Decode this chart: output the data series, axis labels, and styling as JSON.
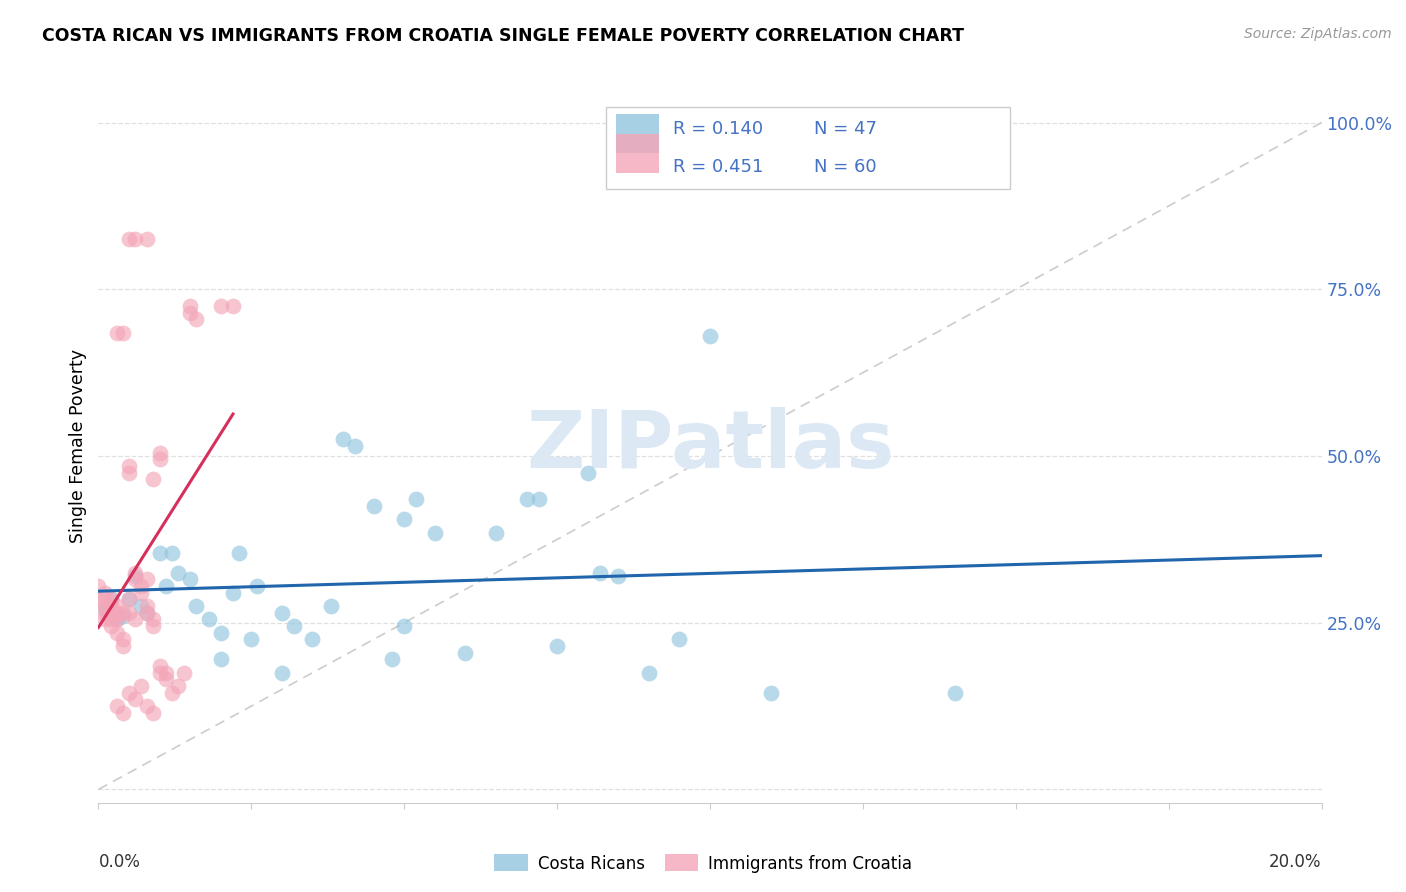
{
  "title": "COSTA RICAN VS IMMIGRANTS FROM CROATIA SINGLE FEMALE POVERTY CORRELATION CHART",
  "source": "Source: ZipAtlas.com",
  "ylabel": "Single Female Poverty",
  "yticks": [
    0.0,
    0.25,
    0.5,
    0.75,
    1.0
  ],
  "ytick_labels": [
    "",
    "25.0%",
    "50.0%",
    "75.0%",
    "100.0%"
  ],
  "xlim": [
    0.0,
    0.2
  ],
  "ylim": [
    -0.02,
    1.05
  ],
  "color_blue": "#92c5de",
  "color_pink": "#f4a6b8",
  "color_blue_line": "#2166ac",
  "color_pink_line": "#d6305a",
  "color_diag": "#cccccc",
  "color_blue_text": "#4472c4",
  "scatter_blue": [
    [
      0.001,
      0.27
    ],
    [
      0.002,
      0.285
    ],
    [
      0.003,
      0.255
    ],
    [
      0.004,
      0.26
    ],
    [
      0.005,
      0.285
    ],
    [
      0.006,
      0.32
    ],
    [
      0.007,
      0.275
    ],
    [
      0.008,
      0.265
    ],
    [
      0.01,
      0.355
    ],
    [
      0.011,
      0.305
    ],
    [
      0.012,
      0.355
    ],
    [
      0.013,
      0.325
    ],
    [
      0.015,
      0.315
    ],
    [
      0.016,
      0.275
    ],
    [
      0.018,
      0.255
    ],
    [
      0.02,
      0.235
    ],
    [
      0.022,
      0.295
    ],
    [
      0.023,
      0.355
    ],
    [
      0.025,
      0.225
    ],
    [
      0.026,
      0.305
    ],
    [
      0.03,
      0.265
    ],
    [
      0.032,
      0.245
    ],
    [
      0.035,
      0.225
    ],
    [
      0.038,
      0.275
    ],
    [
      0.04,
      0.525
    ],
    [
      0.042,
      0.515
    ],
    [
      0.045,
      0.425
    ],
    [
      0.048,
      0.195
    ],
    [
      0.05,
      0.405
    ],
    [
      0.052,
      0.435
    ],
    [
      0.055,
      0.385
    ],
    [
      0.06,
      0.205
    ],
    [
      0.065,
      0.385
    ],
    [
      0.07,
      0.435
    ],
    [
      0.072,
      0.435
    ],
    [
      0.075,
      0.215
    ],
    [
      0.08,
      0.475
    ],
    [
      0.082,
      0.325
    ],
    [
      0.09,
      0.175
    ],
    [
      0.095,
      0.225
    ],
    [
      0.1,
      0.68
    ],
    [
      0.11,
      0.145
    ],
    [
      0.14,
      0.145
    ],
    [
      0.02,
      0.195
    ],
    [
      0.03,
      0.175
    ],
    [
      0.05,
      0.245
    ],
    [
      0.085,
      0.32
    ]
  ],
  "scatter_pink": [
    [
      0.0,
      0.285
    ],
    [
      0.0,
      0.305
    ],
    [
      0.001,
      0.275
    ],
    [
      0.001,
      0.265
    ],
    [
      0.001,
      0.285
    ],
    [
      0.001,
      0.255
    ],
    [
      0.001,
      0.295
    ],
    [
      0.002,
      0.275
    ],
    [
      0.002,
      0.265
    ],
    [
      0.002,
      0.285
    ],
    [
      0.002,
      0.255
    ],
    [
      0.002,
      0.245
    ],
    [
      0.003,
      0.255
    ],
    [
      0.003,
      0.275
    ],
    [
      0.003,
      0.265
    ],
    [
      0.003,
      0.235
    ],
    [
      0.004,
      0.265
    ],
    [
      0.004,
      0.225
    ],
    [
      0.004,
      0.215
    ],
    [
      0.005,
      0.285
    ],
    [
      0.005,
      0.265
    ],
    [
      0.005,
      0.475
    ],
    [
      0.005,
      0.485
    ],
    [
      0.006,
      0.315
    ],
    [
      0.006,
      0.325
    ],
    [
      0.006,
      0.255
    ],
    [
      0.007,
      0.305
    ],
    [
      0.007,
      0.295
    ],
    [
      0.008,
      0.315
    ],
    [
      0.008,
      0.275
    ],
    [
      0.008,
      0.265
    ],
    [
      0.009,
      0.255
    ],
    [
      0.009,
      0.245
    ],
    [
      0.01,
      0.175
    ],
    [
      0.01,
      0.185
    ],
    [
      0.011,
      0.175
    ],
    [
      0.011,
      0.165
    ],
    [
      0.012,
      0.145
    ],
    [
      0.013,
      0.155
    ],
    [
      0.014,
      0.175
    ],
    [
      0.015,
      0.725
    ],
    [
      0.015,
      0.715
    ],
    [
      0.016,
      0.705
    ],
    [
      0.02,
      0.725
    ],
    [
      0.022,
      0.725
    ],
    [
      0.005,
      0.825
    ],
    [
      0.006,
      0.825
    ],
    [
      0.008,
      0.825
    ],
    [
      0.003,
      0.685
    ],
    [
      0.004,
      0.685
    ],
    [
      0.009,
      0.465
    ],
    [
      0.01,
      0.505
    ],
    [
      0.01,
      0.495
    ],
    [
      0.005,
      0.145
    ],
    [
      0.006,
      0.135
    ],
    [
      0.007,
      0.155
    ],
    [
      0.008,
      0.125
    ],
    [
      0.009,
      0.115
    ],
    [
      0.003,
      0.125
    ],
    [
      0.004,
      0.115
    ]
  ],
  "grid_color": "#e0e0e0",
  "background_color": "#ffffff"
}
